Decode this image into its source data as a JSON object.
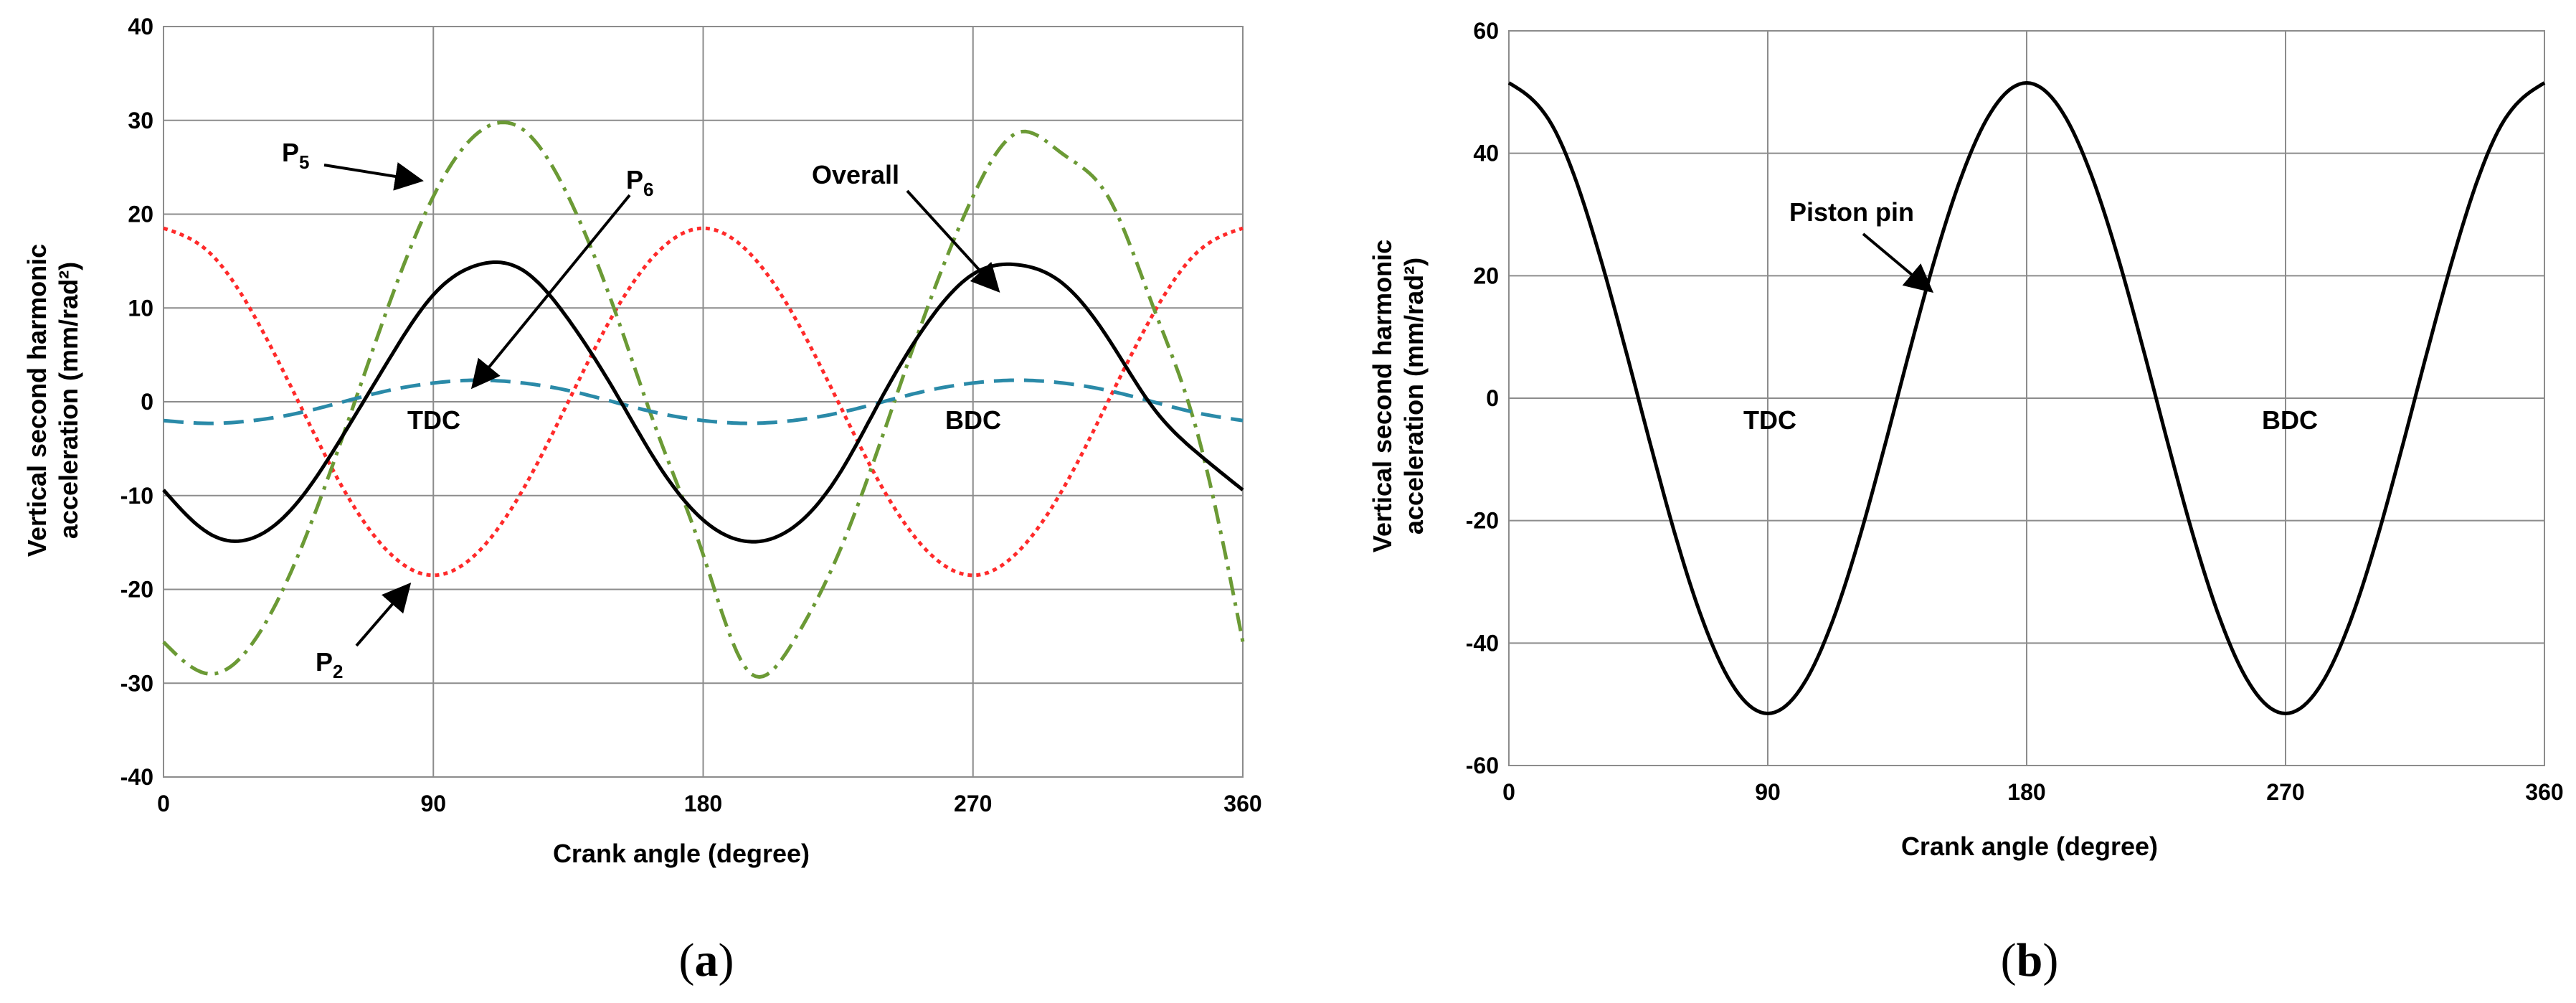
{
  "chart_data": [
    {
      "type": "line",
      "panel_label": "a",
      "xlabel": "Crank angle (degree)",
      "ylabel_line1": "Vertical second harmonic",
      "ylabel_line2": "acceleration (mm/rad²)",
      "xlim": [
        0,
        360
      ],
      "ylim": [
        -40,
        40
      ],
      "xticks": [
        0,
        90,
        180,
        270,
        360
      ],
      "yticks": [
        -40,
        -30,
        -20,
        -10,
        0,
        10,
        20,
        30,
        40
      ],
      "grid": true,
      "series": [
        {
          "name": "P2",
          "style": "dotted",
          "color": "#ff2a2a",
          "x": [
            0,
            15,
            30,
            45,
            60,
            75,
            90,
            105,
            120,
            135,
            150,
            165,
            180,
            195,
            210,
            225,
            240,
            255,
            270,
            285,
            300,
            315,
            330,
            345,
            360
          ],
          "y": [
            18.5,
            16.0,
            9.3,
            0.0,
            -9.3,
            -16.0,
            -18.5,
            -16.0,
            -9.3,
            0.0,
            9.3,
            16.0,
            18.5,
            16.0,
            9.3,
            0.0,
            -9.3,
            -16.0,
            -18.5,
            -16.0,
            -9.3,
            0.0,
            9.3,
            16.0,
            18.5
          ]
        },
        {
          "name": "P5",
          "style": "dashdot",
          "color": "#6b9a35",
          "x": [
            0,
            15,
            30,
            45,
            60,
            75,
            90,
            105,
            120,
            135,
            150,
            165,
            180,
            195,
            210,
            225,
            240,
            255,
            270,
            285,
            300,
            315,
            330,
            345,
            360
          ],
          "y": [
            -25.6,
            -29.0,
            -25.6,
            -16.3,
            -3.5,
            10.2,
            21.9,
            28.7,
            29.0,
            21.9,
            10.2,
            -3.5,
            -16.3,
            -28.7,
            -25.6,
            -16.3,
            -3.5,
            10.2,
            21.9,
            28.7,
            26.4,
            21.9,
            10.2,
            -3.5,
            -25.6
          ]
        },
        {
          "name": "P6",
          "style": "dashed",
          "color": "#2a8aa8",
          "x": [
            0,
            15,
            30,
            45,
            60,
            75,
            90,
            105,
            120,
            135,
            150,
            165,
            180,
            195,
            210,
            225,
            240,
            255,
            270,
            285,
            300,
            315,
            330,
            345,
            360
          ],
          "y": [
            -2.0,
            -2.3,
            -2.0,
            -1.2,
            0.0,
            1.2,
            2.0,
            2.3,
            2.0,
            1.2,
            0.0,
            -1.2,
            -2.0,
            -2.3,
            -2.0,
            -1.2,
            0.0,
            1.2,
            2.0,
            2.3,
            2.0,
            1.2,
            0.0,
            -1.2,
            -2.0
          ]
        },
        {
          "name": "Overall",
          "style": "solid",
          "color": "#000000",
          "x": [
            0,
            15,
            30,
            45,
            60,
            75,
            90,
            105,
            120,
            135,
            150,
            165,
            180,
            195,
            210,
            225,
            240,
            255,
            270,
            285,
            300,
            315,
            330,
            345,
            360
          ],
          "y": [
            -9.4,
            -14.0,
            -14.5,
            -10.6,
            -3.5,
            4.4,
            11.4,
            14.6,
            14.0,
            8.8,
            1.4,
            -6.7,
            -12.6,
            -14.9,
            -13.4,
            -7.9,
            0.7,
            8.5,
            13.6,
            14.6,
            12.6,
            6.8,
            -0.6,
            -5.5,
            -9.4
          ]
        }
      ],
      "annotations": {
        "tdc": "TDC",
        "bdc": "BDC",
        "p5": {
          "main": "P",
          "sub": "5"
        },
        "p6": {
          "main": "P",
          "sub": "6"
        },
        "p2": {
          "main": "P",
          "sub": "2"
        },
        "overall": "Overall"
      }
    },
    {
      "type": "line",
      "panel_label": "b",
      "xlabel": "Crank angle (degree)",
      "ylabel_line1": "Vertical second harmonic",
      "ylabel_line2": "acceleration (mm/rad²)",
      "xlim": [
        0,
        360
      ],
      "ylim": [
        -60,
        60
      ],
      "xticks": [
        0,
        90,
        180,
        270,
        360
      ],
      "yticks": [
        -60,
        -40,
        -20,
        0,
        20,
        40,
        60
      ],
      "grid": true,
      "series": [
        {
          "name": "Piston pin",
          "style": "solid",
          "color": "#000000",
          "x": [
            0,
            15,
            30,
            45,
            60,
            75,
            90,
            105,
            120,
            135,
            150,
            165,
            180,
            195,
            210,
            225,
            240,
            255,
            270,
            285,
            300,
            315,
            330,
            345,
            360
          ],
          "y": [
            51.5,
            44.6,
            25.8,
            0.0,
            -25.8,
            -44.6,
            -51.5,
            -44.6,
            -25.8,
            0.0,
            25.8,
            44.6,
            51.5,
            44.6,
            25.8,
            0.0,
            -25.8,
            -44.6,
            -51.5,
            -44.6,
            -25.8,
            0.0,
            25.8,
            44.6,
            51.5
          ]
        }
      ],
      "annotations": {
        "tdc": "TDC",
        "bdc": "BDC",
        "piston_pin": "Piston pin"
      }
    }
  ]
}
